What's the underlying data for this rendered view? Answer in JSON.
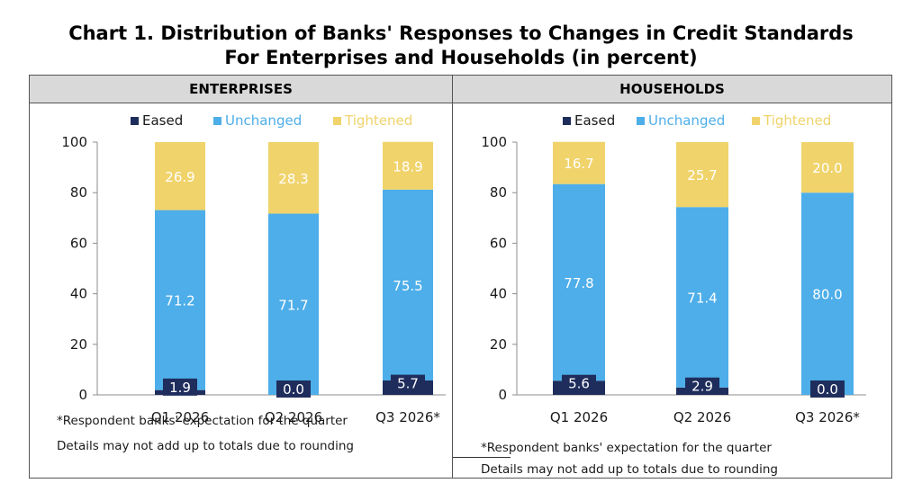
{
  "title_line1": "Chart 1. Distribution of Banks' Responses to Changes in Credit Standards",
  "title_line2": "For Enterprises and Households (in percent)",
  "colors": {
    "eased": "#1f2d5c",
    "unchanged": "#4daee9",
    "tightened": "#f0d36b"
  },
  "legend": [
    "Eased",
    "Unchanged",
    "Tightened"
  ],
  "notes": [
    "*Respondent banks' expectation for the quarter",
    "Details may not add up to totals due to rounding"
  ],
  "chart_data": [
    {
      "type": "bar",
      "stacked": true,
      "title": "ENTERPRISES",
      "categories": [
        "Q1 2026",
        "Q2 2026",
        "Q3 2026*"
      ],
      "ylim": [
        0,
        100
      ],
      "yticks": [
        0,
        20,
        40,
        60,
        80,
        100
      ],
      "series": [
        {
          "name": "Eased",
          "values": [
            1.9,
            0.0,
            5.7
          ]
        },
        {
          "name": "Unchanged",
          "values": [
            71.2,
            71.7,
            75.5
          ]
        },
        {
          "name": "Tightened",
          "values": [
            26.9,
            28.3,
            18.9
          ]
        }
      ]
    },
    {
      "type": "bar",
      "stacked": true,
      "title": "HOUSEHOLDS",
      "categories": [
        "Q1 2026",
        "Q2 2026",
        "Q3 2026*"
      ],
      "ylim": [
        0,
        100
      ],
      "yticks": [
        0,
        20,
        40,
        60,
        80,
        100
      ],
      "series": [
        {
          "name": "Eased",
          "values": [
            5.6,
            2.9,
            0.0
          ]
        },
        {
          "name": "Unchanged",
          "values": [
            77.8,
            71.4,
            80.0
          ]
        },
        {
          "name": "Tightened",
          "values": [
            16.7,
            25.7,
            20.0
          ]
        }
      ]
    }
  ]
}
